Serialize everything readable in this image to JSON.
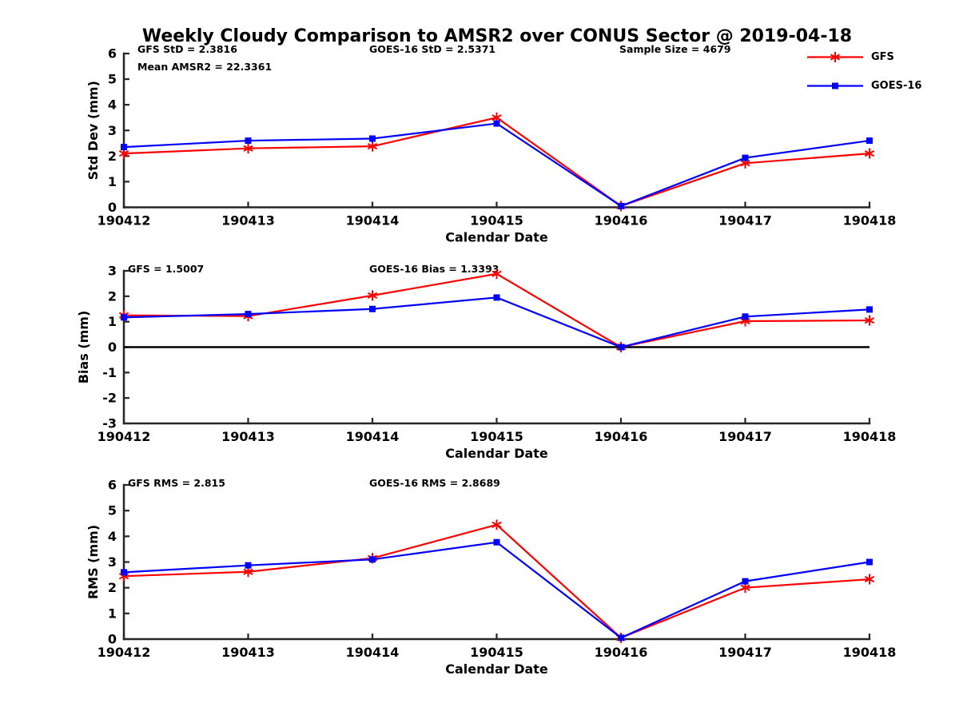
{
  "title": "Weekly Cloudy Comparison to AMSR2 over CONUS Sector @ 2019-04-18",
  "legend": {
    "position": "top-right",
    "entries": [
      {
        "label": "GFS",
        "color": "#ff0000",
        "marker": "asterisk"
      },
      {
        "label": "GOES-16",
        "color": "#0000ff",
        "marker": "square"
      }
    ]
  },
  "colors": {
    "gfs": "#ff0000",
    "goes16": "#0000ff",
    "axis": "#262626",
    "zero_line": "#000000"
  },
  "chart_data": [
    {
      "type": "line",
      "subplot": "std-dev",
      "ylabel": "Std Dev (mm)",
      "xlabel": "Calendar Date",
      "ylim": [
        0,
        6
      ],
      "yticks": [
        0,
        1,
        2,
        3,
        4,
        5,
        6
      ],
      "categories": [
        "190412",
        "190413",
        "190414",
        "190415",
        "190416",
        "190417",
        "190418"
      ],
      "grid": false,
      "zero_line": false,
      "annotations": [
        {
          "text": "GFS StD = 2.3816"
        },
        {
          "text": "Mean AMSR2 = 22.3361"
        },
        {
          "text": "GOES-16 StD = 2.5371"
        },
        {
          "text": "Sample Size = 4679"
        }
      ],
      "series": [
        {
          "name": "GFS",
          "color": "#ff0000",
          "marker": "asterisk",
          "values": [
            2.1,
            2.3,
            2.38,
            3.5,
            0.05,
            1.72,
            2.1
          ]
        },
        {
          "name": "GOES-16",
          "color": "#0000ff",
          "marker": "square",
          "values": [
            2.35,
            2.6,
            2.68,
            3.27,
            0.05,
            1.93,
            2.6
          ]
        }
      ]
    },
    {
      "type": "line",
      "subplot": "bias",
      "ylabel": "Bias (mm)",
      "xlabel": "Calendar Date",
      "ylim": [
        -3,
        3
      ],
      "yticks": [
        -3,
        -2,
        -1,
        0,
        1,
        2,
        3
      ],
      "categories": [
        "190412",
        "190413",
        "190414",
        "190415",
        "190416",
        "190417",
        "190418"
      ],
      "grid": false,
      "zero_line": true,
      "annotations": [
        {
          "text": "GFS = 1.5007"
        },
        {
          "text": "GOES-16 Bias  = 1.3393"
        }
      ],
      "series": [
        {
          "name": "GFS",
          "color": "#ff0000",
          "marker": "asterisk",
          "values": [
            1.25,
            1.22,
            2.03,
            2.88,
            0.0,
            1.02,
            1.05
          ]
        },
        {
          "name": "GOES-16",
          "color": "#0000ff",
          "marker": "square",
          "values": [
            1.17,
            1.3,
            1.5,
            1.95,
            0.0,
            1.2,
            1.48
          ]
        }
      ]
    },
    {
      "type": "line",
      "subplot": "rms",
      "ylabel": "RMS (mm)",
      "xlabel": "Calendar Date",
      "ylim": [
        0,
        6
      ],
      "yticks": [
        0,
        1,
        2,
        3,
        4,
        5,
        6
      ],
      "categories": [
        "190412",
        "190413",
        "190414",
        "190415",
        "190416",
        "190417",
        "190418"
      ],
      "grid": false,
      "zero_line": false,
      "annotations": [
        {
          "text": "GFS RMS = 2.815"
        },
        {
          "text": "GOES-16 RMS = 2.8689"
        }
      ],
      "series": [
        {
          "name": "GFS",
          "color": "#ff0000",
          "marker": "asterisk",
          "values": [
            2.45,
            2.62,
            3.15,
            4.45,
            0.05,
            2.0,
            2.33
          ]
        },
        {
          "name": "GOES-16",
          "color": "#0000ff",
          "marker": "square",
          "values": [
            2.6,
            2.87,
            3.1,
            3.77,
            0.05,
            2.25,
            3.0
          ]
        }
      ]
    }
  ]
}
